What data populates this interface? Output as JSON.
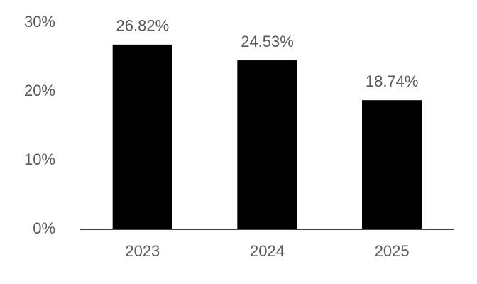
{
  "chart_data": {
    "type": "bar",
    "categories": [
      "2023",
      "2024",
      "2025"
    ],
    "values": [
      26.82,
      24.53,
      18.74
    ],
    "value_labels": [
      "26.82%",
      "24.53%",
      "18.74%"
    ],
    "color": "#000000",
    "ylim": [
      0,
      30
    ],
    "yticks": [
      {
        "value": 0,
        "label": "0%"
      },
      {
        "value": 10,
        "label": "10%"
      },
      {
        "value": 20,
        "label": "20%"
      },
      {
        "value": 30,
        "label": "30%"
      }
    ],
    "grid": false
  }
}
